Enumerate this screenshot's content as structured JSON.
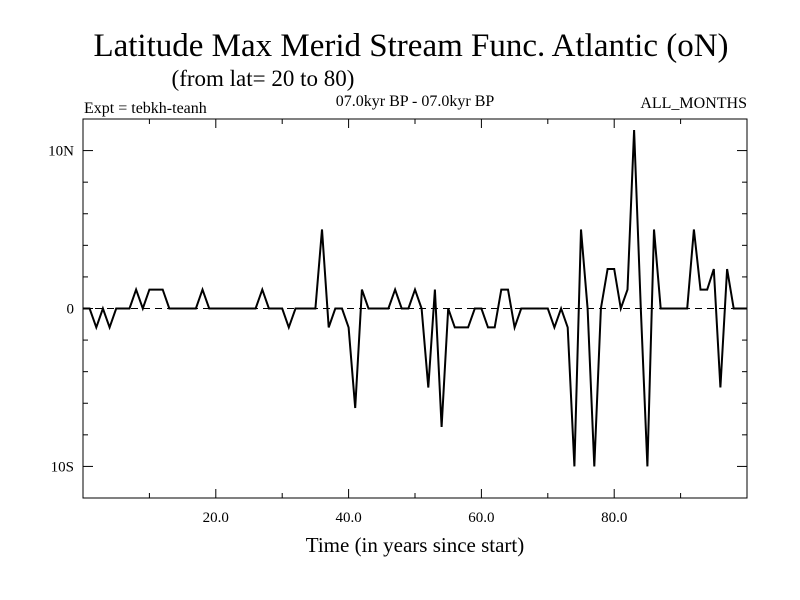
{
  "chart_data": {
    "type": "line",
    "title": "Latitude Max Merid Stream Func. Atlantic (oN)",
    "subtitle": "(from lat= 20 to 80)",
    "experiment": "Expt = tebkh-teanh",
    "period": "07.0kyr BP - 07.0kyr BP",
    "months": "ALL_MONTHS",
    "xlabel": "Time (in years since start)",
    "ylabel": "",
    "xlim": [
      0,
      100
    ],
    "ylim": [
      -12,
      12
    ],
    "x_ticks": [
      20,
      40,
      60,
      80
    ],
    "x_tick_labels": [
      "20.0",
      "40.0",
      "60.0",
      "80.0"
    ],
    "y_ticks": [
      10,
      0,
      -10
    ],
    "y_tick_labels": [
      "10N",
      "0",
      "10S"
    ],
    "zero_line": "dashed",
    "series": [
      {
        "name": "latitude max",
        "x": [
          0,
          1,
          2,
          3,
          4,
          5,
          6,
          7,
          8,
          9,
          10,
          11,
          12,
          13,
          14,
          15,
          16,
          17,
          18,
          19,
          20,
          21,
          22,
          23,
          24,
          25,
          26,
          27,
          28,
          29,
          30,
          31,
          32,
          33,
          34,
          35,
          36,
          37,
          38,
          39,
          40,
          41,
          42,
          43,
          44,
          45,
          46,
          47,
          48,
          49,
          50,
          51,
          52,
          53,
          54,
          55,
          56,
          57,
          58,
          59,
          60,
          61,
          62,
          63,
          64,
          65,
          66,
          67,
          68,
          69,
          70,
          71,
          72,
          73,
          74,
          75,
          76,
          77,
          78,
          79,
          80,
          81,
          82,
          83,
          84,
          85,
          86,
          87,
          88,
          89,
          90,
          91,
          92,
          93,
          94,
          95,
          96,
          97,
          98,
          99,
          100
        ],
        "values": [
          0,
          0,
          -1.2,
          0,
          -1.2,
          0,
          0,
          0,
          1.2,
          0,
          1.2,
          1.2,
          1.2,
          0,
          0,
          0,
          0,
          0,
          1.2,
          0,
          0,
          0,
          0,
          0,
          0,
          0,
          0,
          1.2,
          0,
          0,
          0,
          -1.2,
          0,
          0,
          0,
          0,
          5.0,
          -1.2,
          0,
          0,
          -1.2,
          -6.3,
          1.2,
          0,
          0,
          0,
          0,
          1.2,
          0,
          0,
          1.2,
          0,
          -5.0,
          1.2,
          -7.5,
          0,
          -1.2,
          -1.2,
          -1.2,
          0,
          0,
          -1.2,
          -1.2,
          1.2,
          1.2,
          -1.2,
          0,
          0,
          0,
          0,
          0,
          -1.2,
          0,
          -1.2,
          -10.0,
          5.0,
          0,
          -10.0,
          0,
          2.5,
          2.5,
          0,
          1.2,
          11.3,
          0,
          -10.0,
          5.0,
          0,
          0,
          0,
          0,
          0,
          5.0,
          1.2,
          1.2,
          2.5,
          -5.0,
          2.5,
          0,
          0,
          0
        ]
      }
    ]
  }
}
